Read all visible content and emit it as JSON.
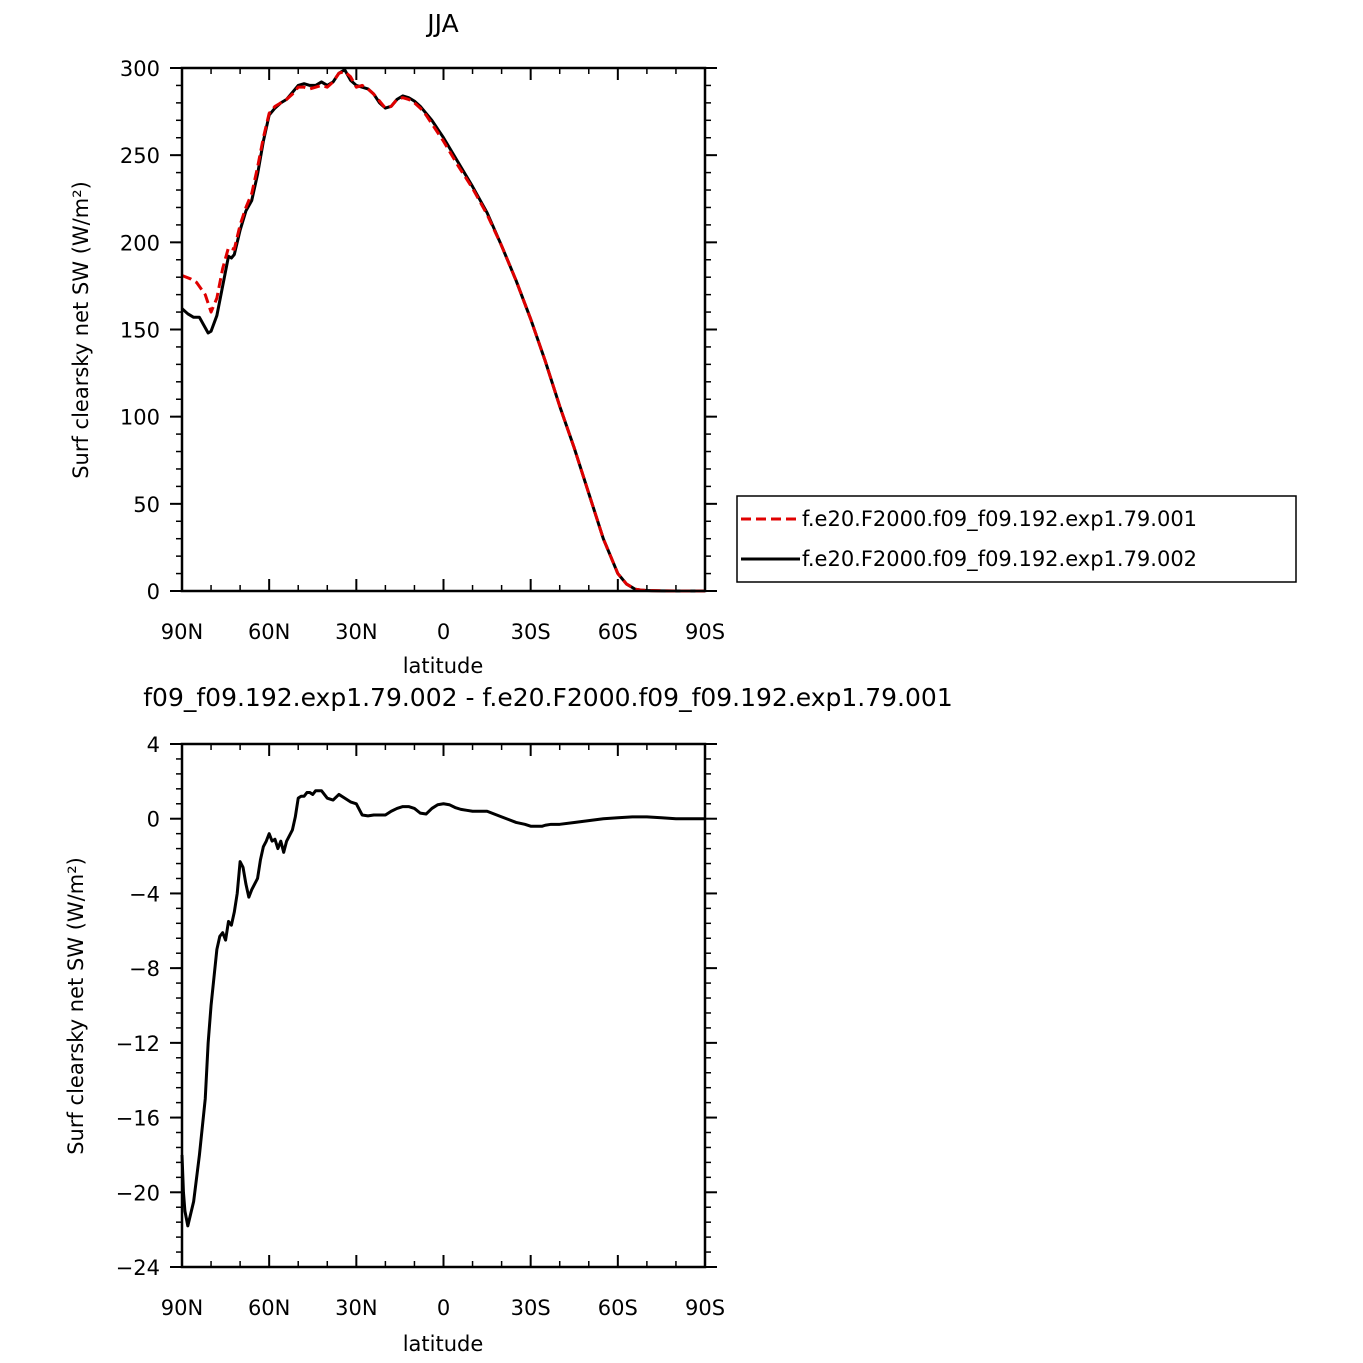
{
  "colors": {
    "series_red": "#e00000",
    "series_black": "#000000",
    "axis": "#000000"
  },
  "chart_data": [
    {
      "type": "line",
      "title": "JJA",
      "xlabel": "latitude",
      "ylabel": "Surf clearsky net SW (W/m²)",
      "xlim": [
        90,
        -90
      ],
      "ylim": [
        0,
        300
      ],
      "xticks": [
        90,
        60,
        30,
        0,
        -30,
        -60,
        -90
      ],
      "xtick_labels": [
        "90N",
        "60N",
        "30N",
        "0",
        "30S",
        "60S",
        "90S"
      ],
      "yticks": [
        0,
        50,
        100,
        150,
        200,
        250,
        300
      ],
      "ytick_labels": [
        "0",
        "50",
        "100",
        "150",
        "200",
        "250",
        "300"
      ],
      "grid": false,
      "legend_position": "right",
      "series": [
        {
          "name": "f.e20.F2000.f09_f09.192.exp1.79.001",
          "color": "#e00000",
          "dash": "dashed",
          "x": [
            90,
            87,
            85,
            82,
            80,
            78,
            76,
            74,
            72,
            70,
            68,
            66,
            64,
            62,
            60,
            58,
            56,
            54,
            52,
            50,
            48,
            46,
            44,
            42,
            40,
            38,
            36,
            34,
            32,
            30,
            28,
            26,
            24,
            22,
            20,
            18,
            16,
            14,
            12,
            10,
            8,
            6,
            4,
            2,
            0,
            -5,
            -10,
            -15,
            -20,
            -25,
            -30,
            -35,
            -40,
            -45,
            -50,
            -55,
            -60,
            -63,
            -66,
            -68,
            -70,
            -75,
            -80,
            -85,
            -90
          ],
          "y": [
            181,
            179,
            177,
            170,
            160,
            168,
            185,
            197,
            196,
            210,
            220,
            228,
            243,
            260,
            274,
            278,
            280,
            282,
            285,
            289,
            289,
            288,
            289,
            290,
            289,
            292,
            297,
            298,
            295,
            289,
            290,
            288,
            285,
            281,
            277,
            278,
            282,
            283,
            282,
            280,
            277,
            273,
            268,
            263,
            258,
            244,
            231,
            216,
            198,
            178,
            156,
            132,
            106,
            82,
            56,
            30,
            10,
            4,
            1,
            0.5,
            0.3,
            0.1,
            0,
            0,
            0
          ]
        },
        {
          "name": "f.e20.F2000.f09_f09.192.exp1.79.002",
          "color": "#000000",
          "dash": "solid",
          "x": [
            90,
            88,
            86,
            84,
            82,
            81,
            80,
            78,
            76,
            74,
            73,
            72,
            70,
            68,
            66,
            64,
            62,
            60,
            58,
            56,
            54,
            52,
            50,
            48,
            46,
            44,
            42,
            40,
            38,
            36,
            34,
            32,
            30,
            28,
            26,
            24,
            22,
            20,
            18,
            16,
            14,
            12,
            10,
            8,
            6,
            4,
            2,
            0,
            -5,
            -10,
            -15,
            -20,
            -25,
            -30,
            -35,
            -40,
            -45,
            -50,
            -55,
            -60,
            -63,
            -66,
            -68,
            -70,
            -75,
            -80,
            -85,
            -90
          ],
          "y": [
            162,
            159,
            157,
            157,
            151,
            148,
            149,
            158,
            175,
            192,
            191,
            193,
            207,
            218,
            224,
            239,
            258,
            273,
            277,
            280,
            282,
            286,
            290,
            291,
            290,
            290,
            292,
            290,
            292,
            297,
            299,
            293,
            290,
            289,
            288,
            285,
            280,
            277,
            278,
            282,
            284,
            283,
            281,
            278,
            274,
            270,
            265,
            260,
            246,
            232,
            217,
            198,
            178,
            156,
            132,
            106,
            82,
            56,
            30,
            10,
            4,
            1,
            0.5,
            0.3,
            0.1,
            0,
            0,
            0
          ]
        }
      ]
    },
    {
      "type": "line",
      "title": "f09_f09.192.exp1.79.002 - f.e20.F2000.f09_f09.192.exp1.79.001",
      "xlabel": "latitude",
      "ylabel": "Surf clearsky net SW (W/m²)",
      "xlim": [
        90,
        -90
      ],
      "ylim": [
        -24,
        4
      ],
      "xticks": [
        90,
        60,
        30,
        0,
        -30,
        -60,
        -90
      ],
      "xtick_labels": [
        "90N",
        "60N",
        "30N",
        "0",
        "30S",
        "60S",
        "90S"
      ],
      "yticks": [
        4,
        0,
        -4,
        -8,
        -12,
        -16,
        -20,
        -24
      ],
      "ytick_labels": [
        "4",
        "0",
        "−4",
        "−8",
        "−12",
        "−16",
        "−20",
        "−24"
      ],
      "grid": false,
      "series": [
        {
          "color": "#000000",
          "dash": "solid",
          "x": [
            90,
            89.5,
            89,
            88,
            86,
            84,
            82,
            81,
            80,
            79,
            78,
            77,
            76,
            75,
            74,
            73,
            72,
            71,
            70,
            69,
            68,
            67,
            66,
            65,
            64,
            63,
            62,
            61,
            60,
            59,
            58,
            57,
            56,
            55,
            54,
            53,
            52,
            51,
            50,
            49,
            48,
            47,
            46,
            45,
            44,
            43,
            42,
            41,
            40,
            38,
            36,
            34,
            32,
            30,
            28,
            26,
            24,
            22,
            20,
            18,
            16,
            14,
            12,
            10,
            8,
            6,
            4,
            2,
            0,
            -2,
            -4,
            -6,
            -8,
            -10,
            -15,
            -20,
            -25,
            -28,
            -30,
            -32,
            -34,
            -35,
            -37,
            -40,
            -45,
            -50,
            -55,
            -60,
            -65,
            -70,
            -75,
            -80,
            -85,
            -90
          ],
          "y": [
            -18,
            -20,
            -21,
            -21.8,
            -20.5,
            -18,
            -15,
            -12,
            -10,
            -8.5,
            -7,
            -6.3,
            -6.1,
            -6.5,
            -5.5,
            -5.7,
            -5,
            -4,
            -2.3,
            -2.6,
            -3.5,
            -4.2,
            -3.8,
            -3.5,
            -3.2,
            -2.2,
            -1.5,
            -1.2,
            -0.8,
            -1.2,
            -1.1,
            -1.6,
            -1.2,
            -1.8,
            -1.2,
            -0.9,
            -0.6,
            0.1,
            1.1,
            1.2,
            1.2,
            1.4,
            1.4,
            1.3,
            1.5,
            1.5,
            1.5,
            1.3,
            1.1,
            1.0,
            1.3,
            1.1,
            0.9,
            0.8,
            0.2,
            0.15,
            0.2,
            0.2,
            0.2,
            0.4,
            0.55,
            0.65,
            0.65,
            0.55,
            0.3,
            0.25,
            0.55,
            0.75,
            0.8,
            0.75,
            0.6,
            0.5,
            0.45,
            0.4,
            0.4,
            0.1,
            -0.2,
            -0.3,
            -0.4,
            -0.4,
            -0.4,
            -0.35,
            -0.3,
            -0.3,
            -0.2,
            -0.1,
            0,
            0.05,
            0.1,
            0.1,
            0.05,
            0,
            0,
            0
          ]
        }
      ]
    }
  ]
}
